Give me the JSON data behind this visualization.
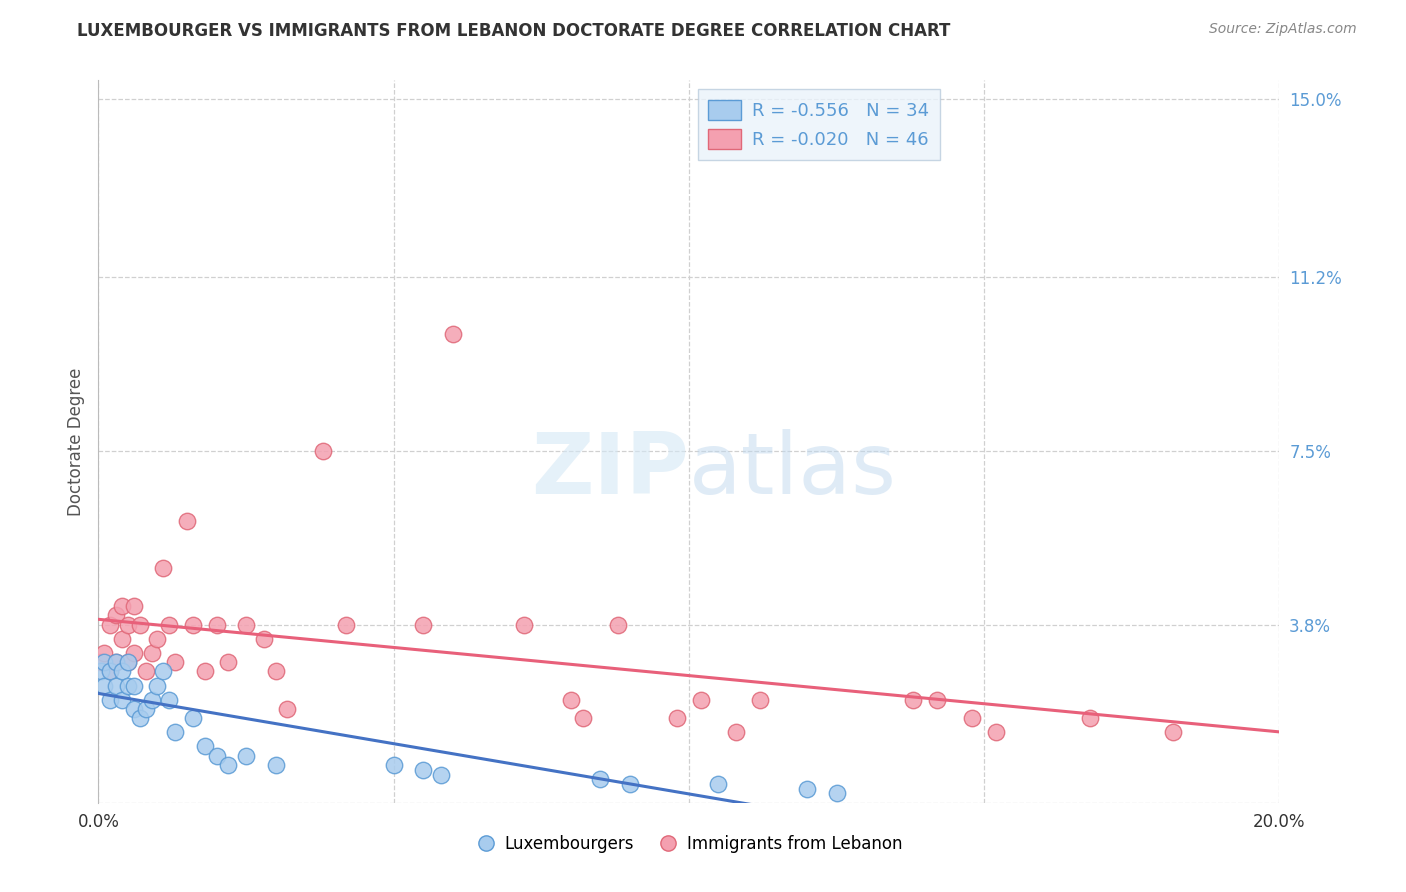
{
  "title": "LUXEMBOURGER VS IMMIGRANTS FROM LEBANON DOCTORATE DEGREE CORRELATION CHART",
  "source": "Source: ZipAtlas.com",
  "ylabel": "Doctorate Degree",
  "xlim": [
    0.0,
    0.2
  ],
  "ylim": [
    0.0,
    0.154
  ],
  "ytick_vals": [
    0.0,
    0.038,
    0.075,
    0.112,
    0.15
  ],
  "ytick_labels": [
    "",
    "3.8%",
    "7.5%",
    "11.2%",
    "15.0%"
  ],
  "grid_color": "#d0d0d0",
  "bg_color": "#ffffff",
  "lux_face": "#A8CCEE",
  "lux_edge": "#5B9BD5",
  "leb_face": "#F4A0B0",
  "leb_edge": "#E06878",
  "trend_lux": "#4472C4",
  "trend_leb": "#E8607A",
  "lux_R": -0.556,
  "lux_N": 34,
  "leb_R": -0.02,
  "leb_N": 46,
  "legend_bg": "#EAF3FB",
  "legend_edge": "#BBCCDD",
  "legend_text_color": "#5B9BD5",
  "lux_x": [
    0.0005,
    0.001,
    0.001,
    0.002,
    0.002,
    0.003,
    0.003,
    0.004,
    0.004,
    0.005,
    0.005,
    0.006,
    0.006,
    0.007,
    0.008,
    0.009,
    0.01,
    0.011,
    0.012,
    0.013,
    0.016,
    0.018,
    0.02,
    0.022,
    0.025,
    0.03,
    0.05,
    0.055,
    0.058,
    0.085,
    0.09,
    0.105,
    0.12,
    0.125
  ],
  "lux_y": [
    0.028,
    0.025,
    0.03,
    0.022,
    0.028,
    0.03,
    0.025,
    0.028,
    0.022,
    0.025,
    0.03,
    0.02,
    0.025,
    0.018,
    0.02,
    0.022,
    0.025,
    0.028,
    0.022,
    0.015,
    0.018,
    0.012,
    0.01,
    0.008,
    0.01,
    0.008,
    0.008,
    0.007,
    0.006,
    0.005,
    0.004,
    0.004,
    0.003,
    0.002
  ],
  "leb_x": [
    0.0005,
    0.001,
    0.002,
    0.002,
    0.003,
    0.003,
    0.004,
    0.004,
    0.005,
    0.005,
    0.006,
    0.006,
    0.007,
    0.008,
    0.009,
    0.01,
    0.011,
    0.012,
    0.013,
    0.015,
    0.016,
    0.018,
    0.02,
    0.022,
    0.025,
    0.028,
    0.03,
    0.032,
    0.038,
    0.042,
    0.055,
    0.06,
    0.072,
    0.08,
    0.082,
    0.088,
    0.098,
    0.102,
    0.108,
    0.112,
    0.138,
    0.142,
    0.148,
    0.152,
    0.168,
    0.182
  ],
  "leb_y": [
    0.03,
    0.032,
    0.038,
    0.028,
    0.04,
    0.03,
    0.042,
    0.035,
    0.038,
    0.03,
    0.042,
    0.032,
    0.038,
    0.028,
    0.032,
    0.035,
    0.05,
    0.038,
    0.03,
    0.06,
    0.038,
    0.028,
    0.038,
    0.03,
    0.038,
    0.035,
    0.028,
    0.02,
    0.075,
    0.038,
    0.038,
    0.1,
    0.038,
    0.022,
    0.018,
    0.038,
    0.018,
    0.022,
    0.015,
    0.022,
    0.022,
    0.022,
    0.018,
    0.015,
    0.018,
    0.015
  ]
}
